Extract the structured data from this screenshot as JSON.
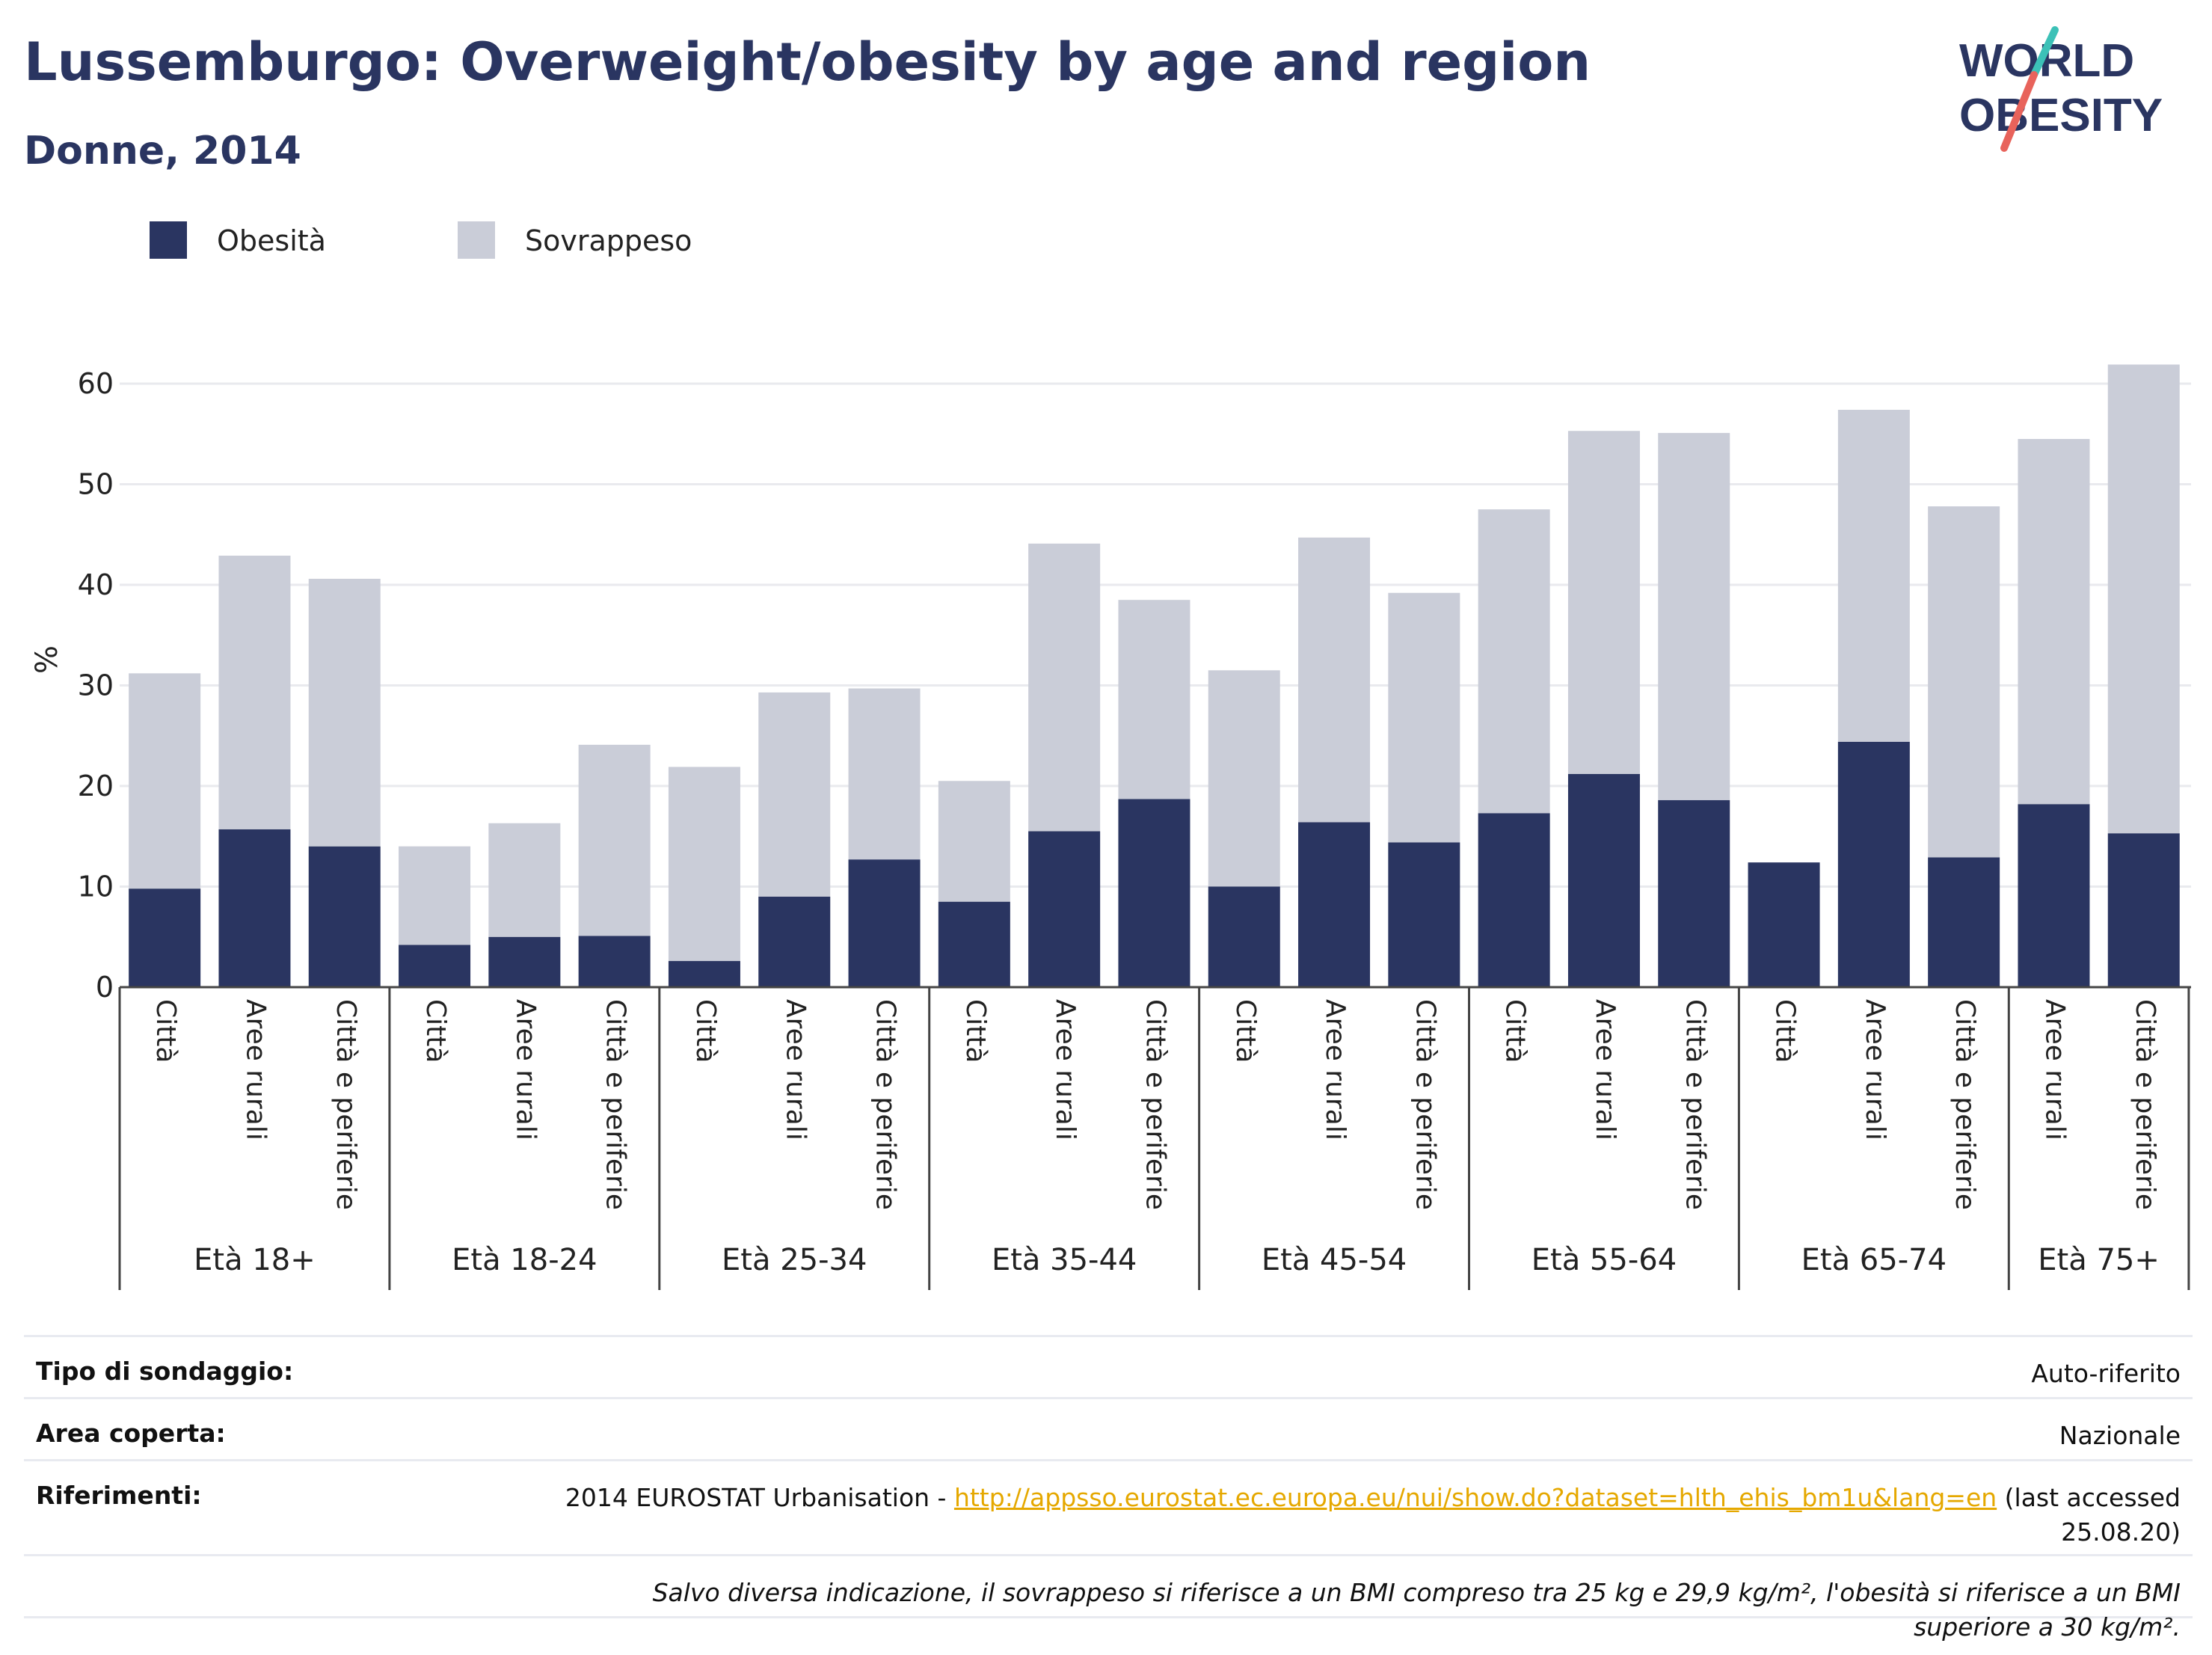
{
  "header": {
    "title": "Lussemburgo: Overweight/obesity by age and region",
    "subtitle": "Donne, 2014"
  },
  "logo": {
    "line1": "WORLD",
    "line2": "OBESITY",
    "colors": {
      "text": "#2a3561",
      "slash_teal": "#3cc1b7",
      "slash_red": "#e8635b"
    }
  },
  "legend": [
    {
      "label": "Obesità",
      "color": "#2a3561"
    },
    {
      "label": "Sovrappeso",
      "color": "#cacdd8"
    }
  ],
  "chart_data": {
    "type": "bar",
    "stacked": true,
    "ylabel": "%",
    "ylim": [
      0,
      62
    ],
    "yticks": [
      0,
      10,
      20,
      30,
      40,
      50,
      60
    ],
    "grid": true,
    "groups": [
      {
        "label": "Età 18+",
        "categories": [
          "Città",
          "Aree rurali",
          "Città e periferie"
        ]
      },
      {
        "label": "Età 18-24",
        "categories": [
          "Città",
          "Aree rurali",
          "Città e periferie"
        ]
      },
      {
        "label": "Età 25-34",
        "categories": [
          "Città",
          "Aree rurali",
          "Città e periferie"
        ]
      },
      {
        "label": "Età 35-44",
        "categories": [
          "Città",
          "Aree rurali",
          "Città e periferie"
        ]
      },
      {
        "label": "Età 45-54",
        "categories": [
          "Città",
          "Aree rurali",
          "Città e periferie"
        ]
      },
      {
        "label": "Età 55-64",
        "categories": [
          "Città",
          "Aree rurali",
          "Città e periferie"
        ]
      },
      {
        "label": "Età 65-74",
        "categories": [
          "Città",
          "Aree rurali",
          "Città e periferie"
        ]
      },
      {
        "label": "Età 75+",
        "categories": [
          "Aree rurali",
          "Città e periferie"
        ]
      }
    ],
    "series": [
      {
        "name": "Obesità",
        "color": "#2a3561",
        "values": [
          9.8,
          15.7,
          14.0,
          4.2,
          5.0,
          5.1,
          2.6,
          9.0,
          12.7,
          8.5,
          15.5,
          18.7,
          10.0,
          16.4,
          14.4,
          17.3,
          21.2,
          18.6,
          12.4,
          24.4,
          12.9,
          18.2,
          15.3
        ]
      },
      {
        "name": "Sovrappeso",
        "color": "#cacdd8",
        "values": [
          21.4,
          27.2,
          26.6,
          9.8,
          11.3,
          19.0,
          19.3,
          20.3,
          17.0,
          12.0,
          28.6,
          19.8,
          21.5,
          28.3,
          24.8,
          30.2,
          34.1,
          36.5,
          0,
          33.0,
          34.9,
          36.3,
          46.6
        ]
      }
    ]
  },
  "info": {
    "survey_label": "Tipo di sondaggio:",
    "survey_value": "Auto-riferito",
    "area_label": "Area coperta:",
    "area_value": "Nazionale",
    "refs_label": "Riferimenti:",
    "refs_prefix": "2014 EUROSTAT Urbanisation - ",
    "refs_link": "http://appsso.eurostat.ec.europa.eu/nui/show.do?dataset=hlth_ehis_bm1u&lang=en",
    "refs_suffix": " (last accessed 25.08.20)",
    "note": "Salvo diversa indicazione, il sovrappeso si riferisce a un BMI compreso tra 25 kg e 29,9 kg/m², l'obesità si riferisce a un BMI superiore a 30 kg/m²."
  }
}
